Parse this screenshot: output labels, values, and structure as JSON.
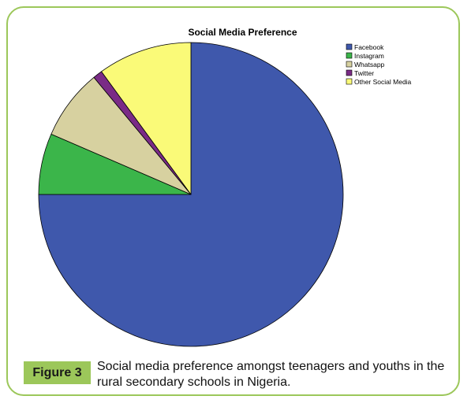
{
  "chart_data": {
    "type": "pie",
    "title": "Social  Media Preference",
    "legend_position": "top-right",
    "slices": [
      {
        "label": "Facebook",
        "value": 75.0,
        "color": "#3f58ac"
      },
      {
        "label": "Instagram",
        "value": 6.5,
        "color": "#3bb54a"
      },
      {
        "label": "Whatsapp",
        "value": 7.5,
        "color": "#d7d1a0"
      },
      {
        "label": "Twitter",
        "value": 1.0,
        "color": "#7a2b86"
      },
      {
        "label": "Other Social Media",
        "value": 10.0,
        "color": "#fafa78"
      }
    ]
  },
  "caption": {
    "label": "Figure 3",
    "text": "Social media preference amongst teenagers and youths in the rural secondary schools in Nigeria."
  },
  "colors": {
    "frame_border": "#9cc75a",
    "badge_bg": "#9cc75a"
  }
}
